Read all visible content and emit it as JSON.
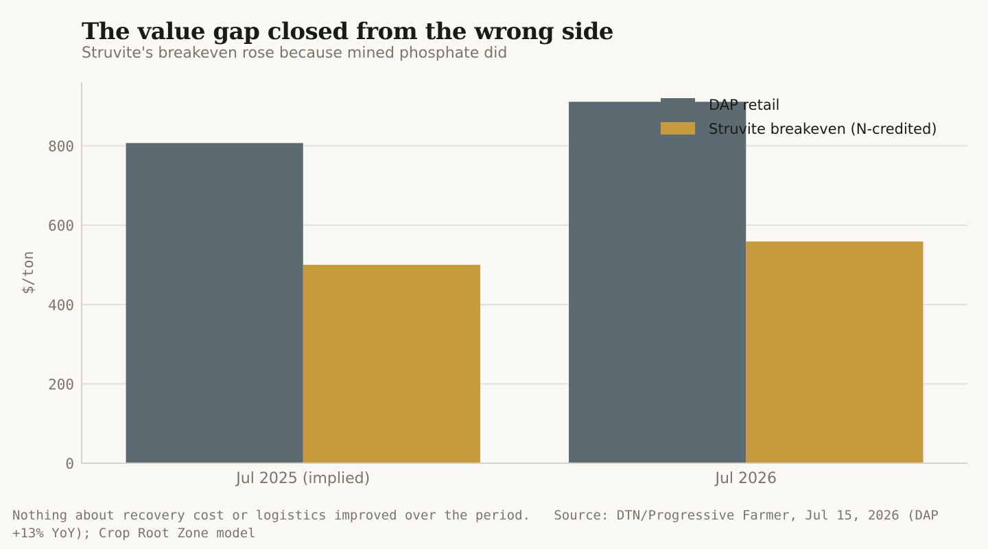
{
  "header": {
    "title": "The value gap closed from the wrong side",
    "subtitle": "Struvite's breakeven rose because mined phosphate did"
  },
  "footer": {
    "note": "Nothing about recovery cost or logistics improved over the period.",
    "source": "Source: DTN/Progressive Farmer, Jul 15, 2026 (DAP +13% YoY); Crop Root Zone model"
  },
  "colors": {
    "background": "#f9f8f4",
    "dap": "#5c6a72",
    "struvite": "#c79a3d",
    "grid": "#e3e0d6",
    "axis": "#d6d2c6",
    "muted_text": "#7a7568",
    "dark_text": "#1a1a17"
  },
  "chart_data": {
    "type": "bar",
    "title": "The value gap closed from the wrong side",
    "subtitle": "Struvite's breakeven rose because mined phosphate did",
    "categories": [
      "Jul 2025 (implied)",
      "Jul 2026"
    ],
    "series": [
      {
        "name": "DAP retail",
        "values": [
          807,
          911
        ],
        "color": "#5c6a72"
      },
      {
        "name": "Struvite breakeven (N-credited)",
        "values": [
          500,
          559
        ],
        "color": "#c79a3d"
      }
    ],
    "xlabel": "",
    "ylabel": "$/ton",
    "ylim": [
      0,
      960
    ],
    "yticks": [
      0,
      200,
      400,
      600,
      800
    ],
    "grid": true,
    "legend_position": "top-right"
  }
}
